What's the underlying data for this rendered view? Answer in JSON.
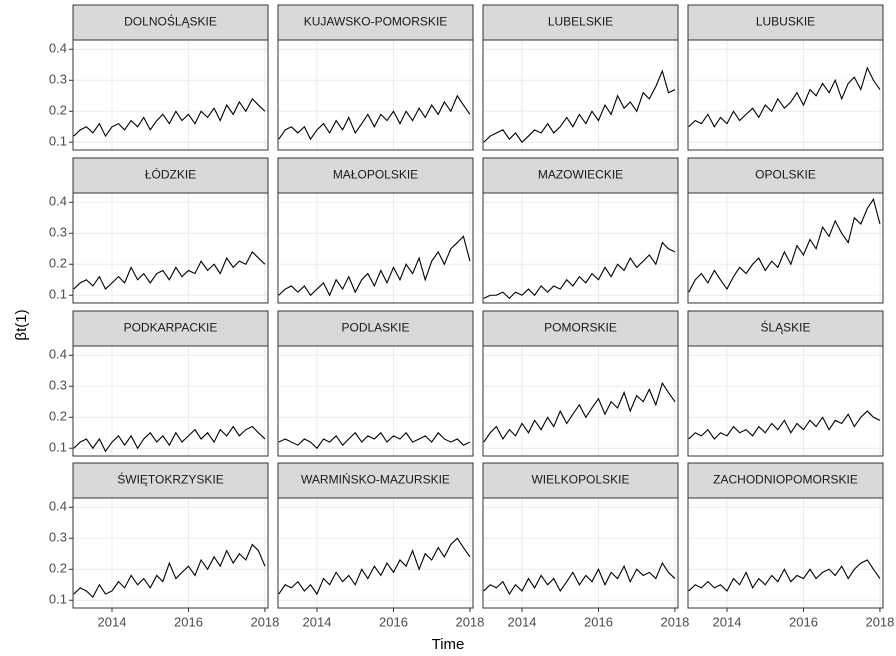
{
  "chart_data": {
    "type": "line",
    "facets": true,
    "x_label": "Time",
    "y_label": "βt(1)",
    "color": "#000000",
    "grid": true,
    "xlim": [
      2012.98,
      2018.08
    ],
    "xticks": [
      2014,
      2016,
      2018
    ],
    "ylim": [
      0.075,
      0.43
    ],
    "yticks": [
      0.1,
      0.2,
      0.3,
      0.4
    ],
    "x": [
      2013,
      2013.17,
      2013.33,
      2013.5,
      2013.67,
      2013.83,
      2014,
      2014.17,
      2014.33,
      2014.5,
      2014.67,
      2014.83,
      2015,
      2015.17,
      2015.33,
      2015.5,
      2015.67,
      2015.83,
      2016,
      2016.17,
      2016.33,
      2016.5,
      2016.67,
      2016.83,
      2017,
      2017.17,
      2017.33,
      2017.5,
      2017.67,
      2017.83,
      2018
    ],
    "series": [
      {
        "name": "DOLNOŚLĄSKIE",
        "values": [
          0.12,
          0.14,
          0.15,
          0.13,
          0.16,
          0.12,
          0.15,
          0.16,
          0.14,
          0.17,
          0.15,
          0.18,
          0.14,
          0.17,
          0.19,
          0.16,
          0.2,
          0.17,
          0.19,
          0.16,
          0.2,
          0.18,
          0.21,
          0.17,
          0.22,
          0.19,
          0.23,
          0.2,
          0.24,
          0.22,
          0.2
        ]
      },
      {
        "name": "KUJAWSKO-POMORSKIE",
        "values": [
          0.11,
          0.14,
          0.15,
          0.13,
          0.15,
          0.11,
          0.14,
          0.16,
          0.13,
          0.17,
          0.14,
          0.18,
          0.13,
          0.16,
          0.19,
          0.15,
          0.19,
          0.17,
          0.2,
          0.16,
          0.2,
          0.17,
          0.21,
          0.18,
          0.22,
          0.19,
          0.23,
          0.2,
          0.25,
          0.22,
          0.19
        ]
      },
      {
        "name": "LUBELSKIE",
        "values": [
          0.1,
          0.12,
          0.13,
          0.14,
          0.11,
          0.13,
          0.1,
          0.12,
          0.14,
          0.13,
          0.16,
          0.13,
          0.15,
          0.18,
          0.15,
          0.19,
          0.16,
          0.2,
          0.17,
          0.22,
          0.19,
          0.25,
          0.21,
          0.23,
          0.2,
          0.26,
          0.24,
          0.28,
          0.33,
          0.26,
          0.27
        ]
      },
      {
        "name": "LUBUSKIE",
        "values": [
          0.15,
          0.17,
          0.16,
          0.19,
          0.15,
          0.18,
          0.16,
          0.2,
          0.17,
          0.19,
          0.21,
          0.18,
          0.22,
          0.2,
          0.24,
          0.21,
          0.23,
          0.26,
          0.22,
          0.27,
          0.25,
          0.29,
          0.26,
          0.3,
          0.24,
          0.29,
          0.31,
          0.27,
          0.34,
          0.3,
          0.27
        ]
      },
      {
        "name": "ŁÓDZKIE",
        "values": [
          0.12,
          0.14,
          0.15,
          0.13,
          0.16,
          0.12,
          0.14,
          0.16,
          0.14,
          0.19,
          0.15,
          0.17,
          0.14,
          0.17,
          0.18,
          0.15,
          0.19,
          0.16,
          0.18,
          0.17,
          0.21,
          0.18,
          0.2,
          0.17,
          0.22,
          0.19,
          0.21,
          0.2,
          0.24,
          0.22,
          0.2
        ]
      },
      {
        "name": "MAŁOPOLSKIE",
        "values": [
          0.1,
          0.12,
          0.13,
          0.11,
          0.13,
          0.1,
          0.12,
          0.14,
          0.1,
          0.15,
          0.12,
          0.16,
          0.11,
          0.15,
          0.17,
          0.13,
          0.18,
          0.14,
          0.19,
          0.15,
          0.2,
          0.17,
          0.22,
          0.15,
          0.21,
          0.24,
          0.2,
          0.25,
          0.27,
          0.29,
          0.21
        ]
      },
      {
        "name": "MAZOWIECKIE",
        "values": [
          0.09,
          0.1,
          0.1,
          0.11,
          0.09,
          0.11,
          0.1,
          0.12,
          0.1,
          0.13,
          0.11,
          0.13,
          0.12,
          0.15,
          0.13,
          0.16,
          0.14,
          0.17,
          0.15,
          0.19,
          0.16,
          0.2,
          0.18,
          0.22,
          0.19,
          0.21,
          0.23,
          0.2,
          0.27,
          0.25,
          0.24
        ]
      },
      {
        "name": "OPOLSKIE",
        "values": [
          0.11,
          0.15,
          0.17,
          0.14,
          0.18,
          0.15,
          0.12,
          0.16,
          0.19,
          0.17,
          0.2,
          0.22,
          0.18,
          0.21,
          0.19,
          0.24,
          0.2,
          0.26,
          0.23,
          0.28,
          0.25,
          0.32,
          0.29,
          0.34,
          0.3,
          0.27,
          0.35,
          0.33,
          0.38,
          0.41,
          0.33
        ]
      },
      {
        "name": "PODKARPACKIE",
        "values": [
          0.1,
          0.12,
          0.13,
          0.1,
          0.13,
          0.09,
          0.12,
          0.14,
          0.11,
          0.14,
          0.1,
          0.13,
          0.15,
          0.12,
          0.14,
          0.11,
          0.15,
          0.12,
          0.14,
          0.16,
          0.13,
          0.15,
          0.12,
          0.16,
          0.14,
          0.17,
          0.14,
          0.16,
          0.17,
          0.15,
          0.13
        ]
      },
      {
        "name": "PODLASKIE",
        "values": [
          0.12,
          0.13,
          0.12,
          0.11,
          0.13,
          0.12,
          0.1,
          0.13,
          0.12,
          0.14,
          0.11,
          0.13,
          0.15,
          0.12,
          0.14,
          0.13,
          0.15,
          0.12,
          0.14,
          0.13,
          0.15,
          0.12,
          0.13,
          0.14,
          0.12,
          0.15,
          0.13,
          0.12,
          0.13,
          0.11,
          0.12
        ]
      },
      {
        "name": "POMORSKIE",
        "values": [
          0.12,
          0.15,
          0.17,
          0.13,
          0.16,
          0.14,
          0.18,
          0.15,
          0.19,
          0.16,
          0.2,
          0.17,
          0.22,
          0.18,
          0.21,
          0.24,
          0.2,
          0.23,
          0.26,
          0.21,
          0.25,
          0.23,
          0.28,
          0.22,
          0.27,
          0.25,
          0.29,
          0.24,
          0.31,
          0.28,
          0.25
        ]
      },
      {
        "name": "ŚLĄSKIE",
        "values": [
          0.13,
          0.15,
          0.14,
          0.16,
          0.13,
          0.15,
          0.14,
          0.17,
          0.15,
          0.16,
          0.14,
          0.17,
          0.15,
          0.18,
          0.16,
          0.19,
          0.15,
          0.18,
          0.16,
          0.19,
          0.17,
          0.2,
          0.16,
          0.19,
          0.18,
          0.21,
          0.17,
          0.2,
          0.22,
          0.2,
          0.19
        ]
      },
      {
        "name": "ŚWIĘTOKRZYSKIE",
        "values": [
          0.12,
          0.14,
          0.13,
          0.11,
          0.15,
          0.12,
          0.13,
          0.16,
          0.14,
          0.18,
          0.15,
          0.17,
          0.14,
          0.18,
          0.16,
          0.22,
          0.17,
          0.19,
          0.21,
          0.18,
          0.23,
          0.2,
          0.24,
          0.21,
          0.26,
          0.22,
          0.25,
          0.23,
          0.28,
          0.26,
          0.21
        ]
      },
      {
        "name": "WARMIŃSKO-MAZURSKIE",
        "values": [
          0.12,
          0.15,
          0.14,
          0.16,
          0.13,
          0.15,
          0.12,
          0.17,
          0.15,
          0.19,
          0.16,
          0.18,
          0.15,
          0.2,
          0.17,
          0.21,
          0.18,
          0.22,
          0.19,
          0.23,
          0.21,
          0.26,
          0.2,
          0.25,
          0.23,
          0.27,
          0.24,
          0.28,
          0.3,
          0.27,
          0.24
        ]
      },
      {
        "name": "WIELKOPOLSKIE",
        "values": [
          0.13,
          0.15,
          0.14,
          0.16,
          0.12,
          0.15,
          0.13,
          0.17,
          0.14,
          0.18,
          0.15,
          0.17,
          0.13,
          0.16,
          0.19,
          0.15,
          0.18,
          0.16,
          0.2,
          0.15,
          0.19,
          0.17,
          0.21,
          0.16,
          0.2,
          0.18,
          0.19,
          0.17,
          0.22,
          0.19,
          0.17
        ]
      },
      {
        "name": "ZACHODNIOPOMORSKIE",
        "values": [
          0.13,
          0.15,
          0.14,
          0.16,
          0.14,
          0.15,
          0.13,
          0.17,
          0.15,
          0.19,
          0.14,
          0.17,
          0.15,
          0.18,
          0.16,
          0.2,
          0.16,
          0.18,
          0.17,
          0.2,
          0.17,
          0.19,
          0.2,
          0.18,
          0.21,
          0.17,
          0.2,
          0.22,
          0.23,
          0.2,
          0.17
        ]
      }
    ]
  }
}
